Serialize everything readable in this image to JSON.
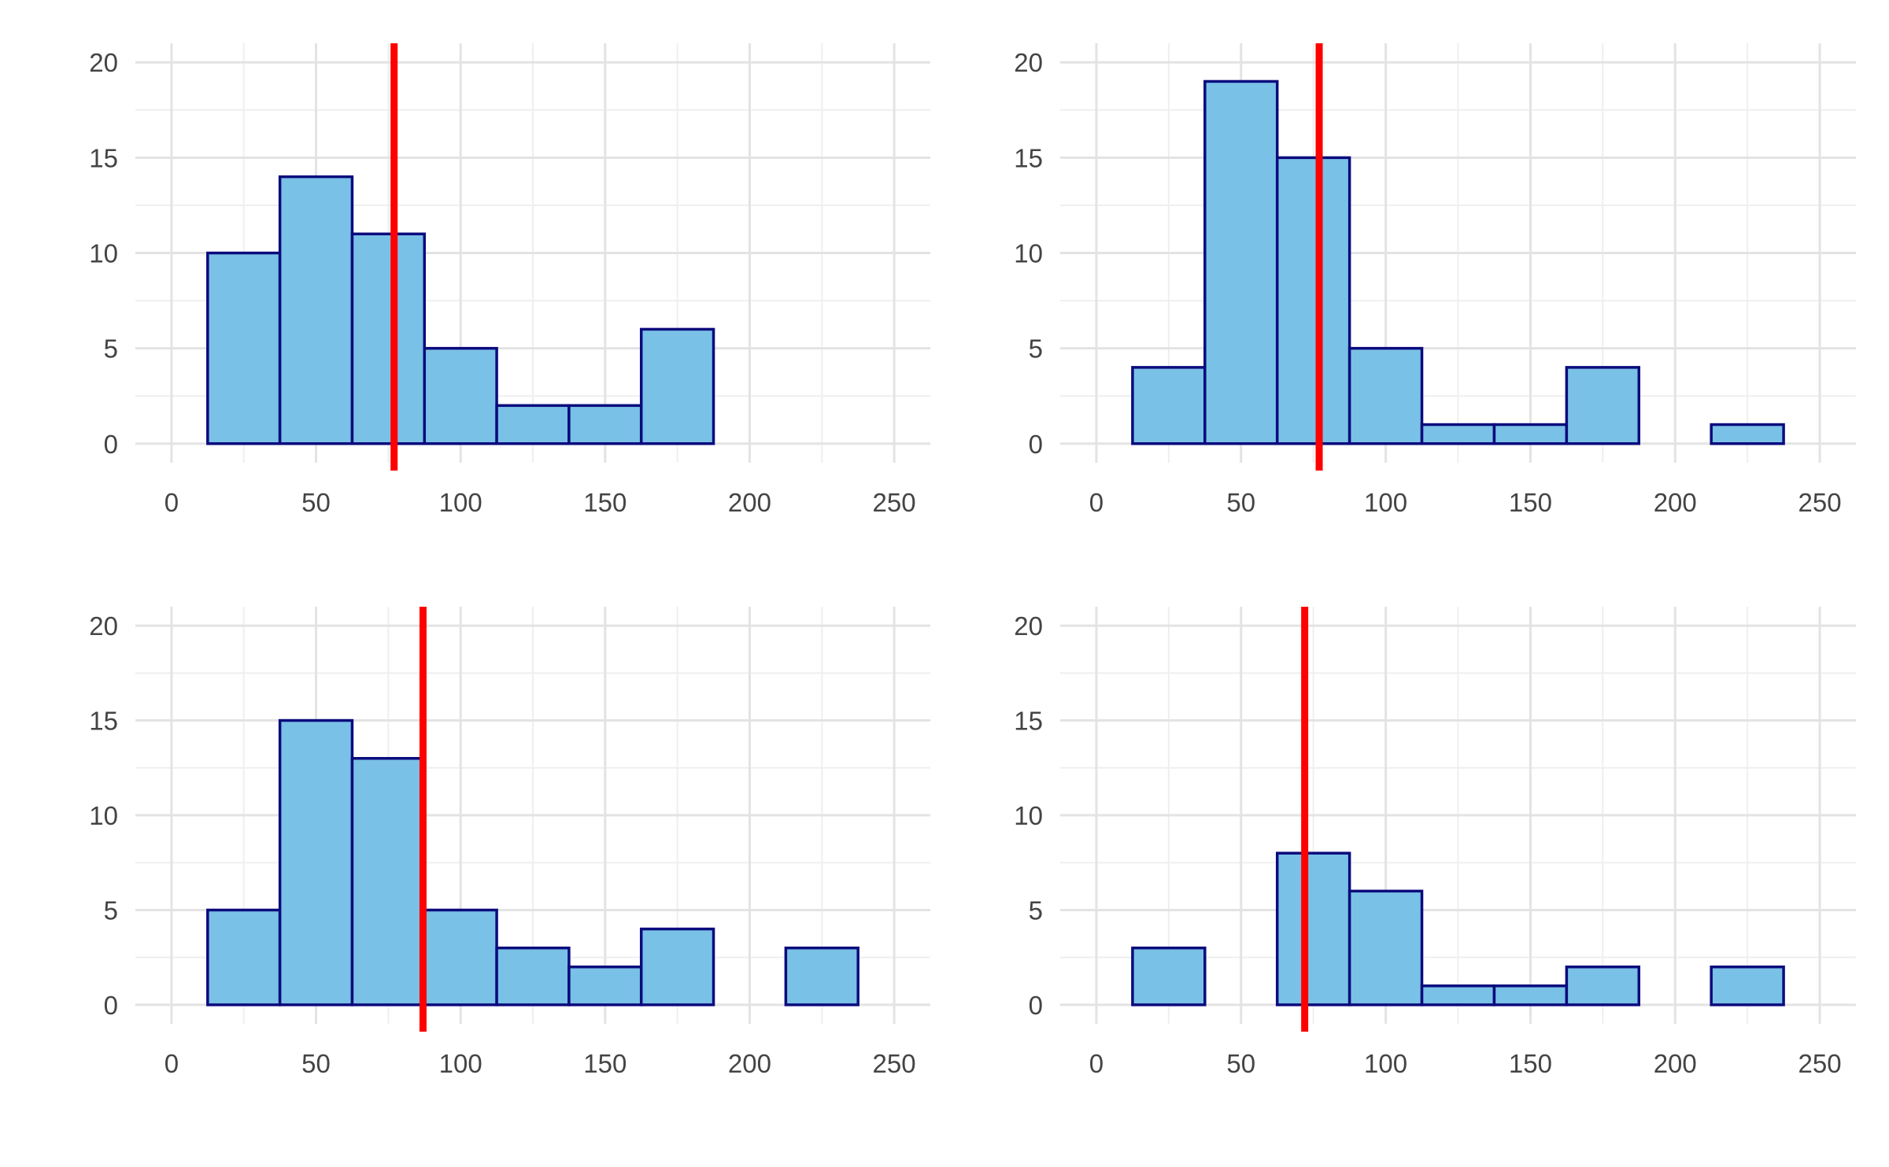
{
  "chart_data": [
    {
      "type": "bar",
      "x_ticks": [
        0,
        50,
        100,
        150,
        200,
        250
      ],
      "y_ticks": [
        0,
        5,
        10,
        15,
        20
      ],
      "xlim": [
        -12.5,
        262.5
      ],
      "ylim": [
        -1,
        21
      ],
      "bin_starts": [
        12.5,
        37.5,
        62.5,
        87.5,
        112.5,
        137.5,
        162.5,
        187.5,
        212.5
      ],
      "bin_width": 25,
      "counts": [
        10,
        14,
        11,
        5,
        2,
        2,
        6,
        0,
        0
      ],
      "vline": 77,
      "grid": true
    },
    {
      "type": "bar",
      "x_ticks": [
        0,
        50,
        100,
        150,
        200,
        250
      ],
      "y_ticks": [
        0,
        5,
        10,
        15,
        20
      ],
      "xlim": [
        -12.5,
        262.5
      ],
      "ylim": [
        -1,
        21
      ],
      "bin_starts": [
        12.5,
        37.5,
        62.5,
        87.5,
        112.5,
        137.5,
        162.5,
        187.5,
        212.5
      ],
      "bin_width": 25,
      "counts": [
        4,
        19,
        15,
        5,
        1,
        1,
        4,
        0,
        1
      ],
      "vline": 77,
      "grid": true
    },
    {
      "type": "bar",
      "x_ticks": [
        0,
        50,
        100,
        150,
        200,
        250
      ],
      "y_ticks": [
        0,
        5,
        10,
        15,
        20
      ],
      "xlim": [
        -12.5,
        262.5
      ],
      "ylim": [
        -1,
        21
      ],
      "bin_starts": [
        12.5,
        37.5,
        62.5,
        87.5,
        112.5,
        137.5,
        162.5,
        187.5,
        212.5
      ],
      "bin_width": 25,
      "counts": [
        5,
        15,
        13,
        5,
        3,
        2,
        4,
        0,
        3
      ],
      "vline": 87,
      "grid": true
    },
    {
      "type": "bar",
      "x_ticks": [
        0,
        50,
        100,
        150,
        200,
        250
      ],
      "y_ticks": [
        0,
        5,
        10,
        15,
        20
      ],
      "xlim": [
        -12.5,
        262.5
      ],
      "ylim": [
        -1,
        21
      ],
      "bin_starts": [
        12.5,
        37.5,
        62.5,
        87.5,
        112.5,
        137.5,
        162.5,
        187.5,
        212.5
      ],
      "bin_width": 25,
      "counts": [
        3,
        0,
        8,
        6,
        1,
        1,
        2,
        0,
        2
      ],
      "vline": 72,
      "grid": true
    }
  ],
  "colors": {
    "bar_fill": "#79c1e6",
    "bar_stroke": "#0b0b7d",
    "vline": "#ff0000",
    "grid_major": "#e3e3e3",
    "grid_minor": "#efefef",
    "tick_text": "#444444"
  }
}
